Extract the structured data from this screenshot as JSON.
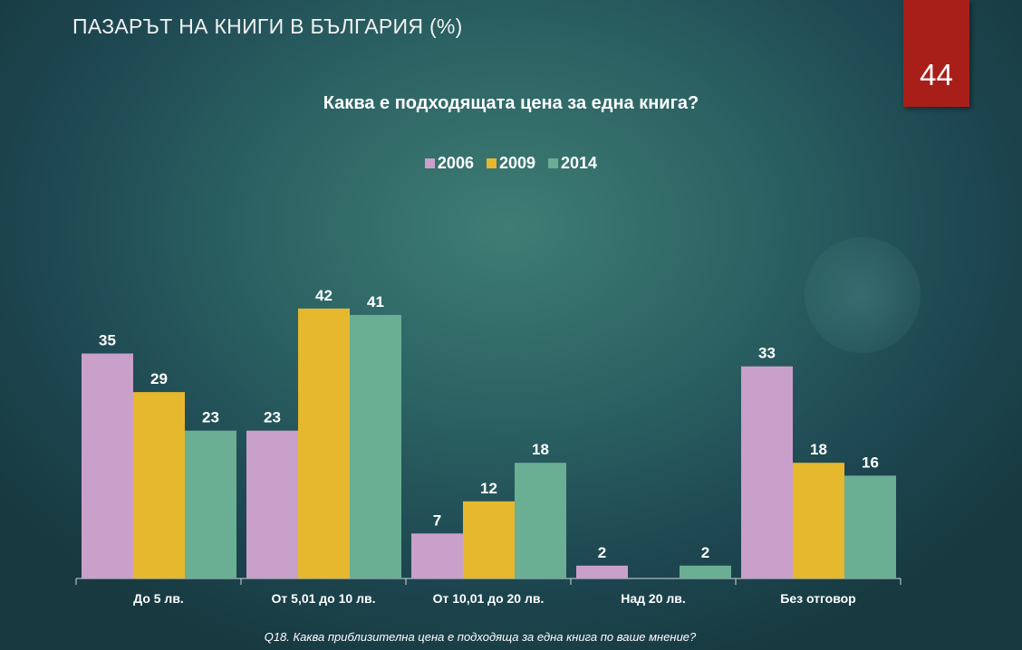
{
  "page": {
    "title": "ПАЗАРЪТ НА КНИГИ В БЪЛГАРИЯ (%)",
    "slide_number": "44",
    "footnote": "Q18. Каква приблизителна цена е подходяща за една книга по ваше мнение?"
  },
  "colors": {
    "2006": "#c9a0c9",
    "2009": "#e6b82e",
    "2014": "#6aae94",
    "badge": "#a81f1a"
  },
  "chart_data": {
    "type": "bar",
    "title": "Каква е подходящата цена за една книга?",
    "categories": [
      "До 5 лв.",
      "От 5,01 до 10 лв.",
      "От 10,01 до 20 лв.",
      "Над 20 лв.",
      "Без отговор"
    ],
    "series": [
      {
        "name": "2006",
        "values": [
          35,
          23,
          7,
          2,
          33
        ]
      },
      {
        "name": "2009",
        "values": [
          29,
          42,
          12,
          null,
          18
        ]
      },
      {
        "name": "2014",
        "values": [
          23,
          41,
          18,
          2,
          16
        ]
      }
    ],
    "legend_position": "top",
    "ylim": [
      0,
      44
    ],
    "grid": false,
    "data_labels": true
  }
}
